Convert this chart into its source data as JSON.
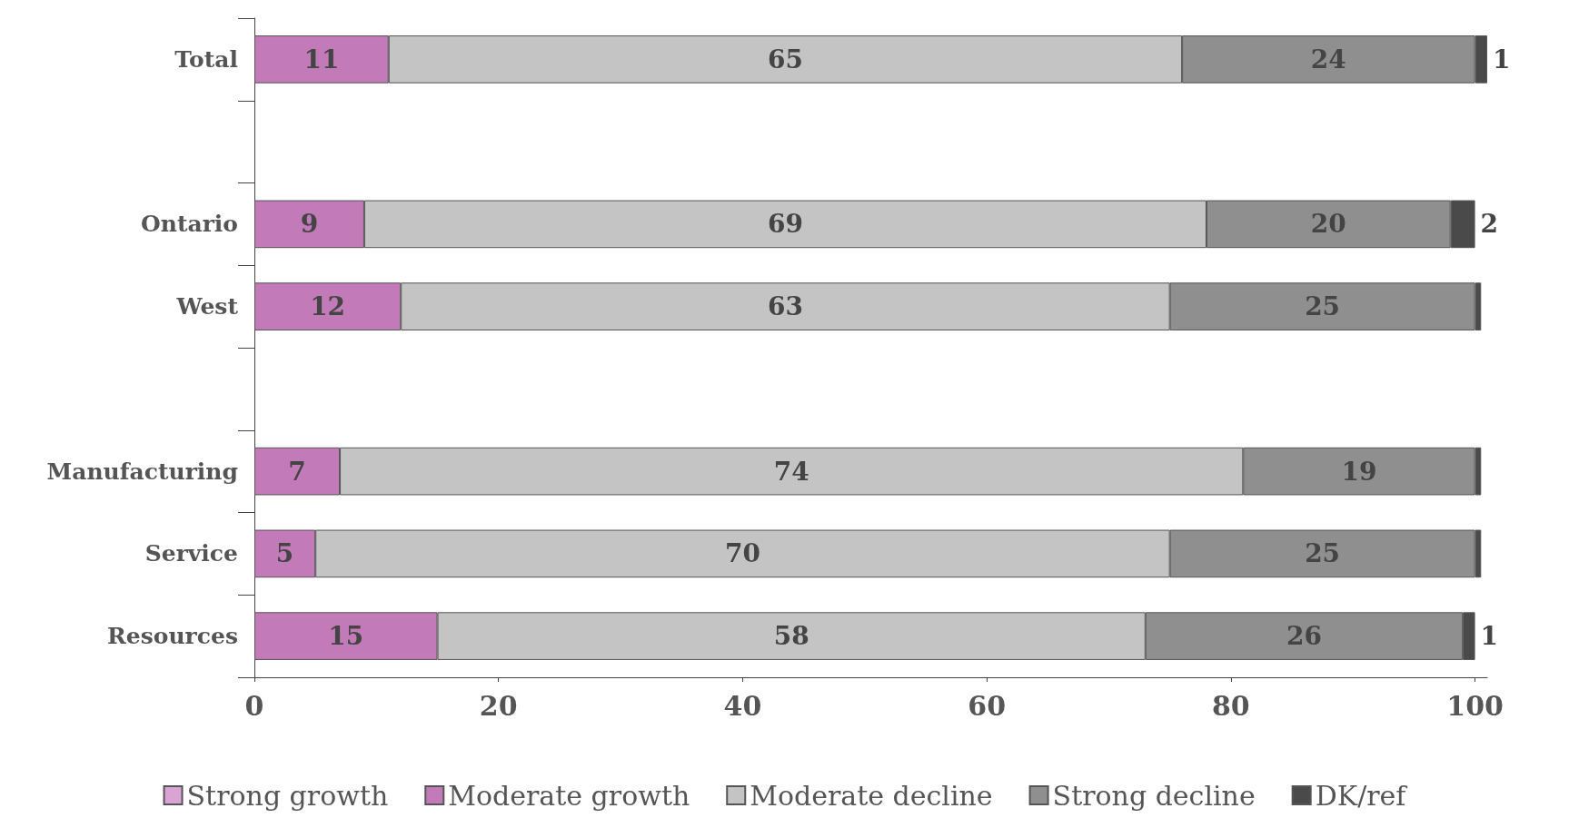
{
  "chart_data": {
    "type": "bar",
    "orientation": "horizontal",
    "stacked": true,
    "categories": [
      "Total",
      null,
      "Ontario",
      "West",
      null,
      "Manufacturing",
      "Service",
      "Resources"
    ],
    "series": [
      {
        "name": "Strong growth",
        "color": "#d9a3d3",
        "values": [
          null,
          null,
          null,
          null,
          null,
          null,
          null,
          null
        ]
      },
      {
        "name": "Moderate growth",
        "color": "#c27bb8",
        "values": [
          11,
          null,
          9,
          12,
          null,
          7,
          5,
          15
        ],
        "value_labels": [
          "11",
          null,
          "9",
          "12",
          null,
          "7",
          "5",
          "15"
        ]
      },
      {
        "name": "Moderate decline",
        "color": "#c4c4c4",
        "values": [
          65,
          null,
          69,
          63,
          null,
          74,
          70,
          58
        ],
        "value_labels": [
          "65",
          null,
          "69",
          "63",
          null,
          "74",
          "70",
          "58"
        ]
      },
      {
        "name": "Strong decline",
        "color": "#8f8f8f",
        "values": [
          24,
          null,
          20,
          25,
          null,
          19,
          25,
          26
        ],
        "value_labels": [
          "24",
          null,
          "20",
          "25",
          null,
          "19",
          "25",
          "26"
        ]
      },
      {
        "name": "DK/ref",
        "color": "#4a4a4a",
        "values": [
          1,
          null,
          2,
          0.5,
          null,
          0.5,
          0.5,
          1
        ],
        "value_labels": [
          "1",
          null,
          "2",
          null,
          null,
          null,
          null,
          "1"
        ]
      }
    ],
    "xlim": [
      0,
      101
    ],
    "xticks": [
      0,
      20,
      40,
      60,
      80,
      100
    ],
    "grid": false,
    "legend": "bottom"
  }
}
